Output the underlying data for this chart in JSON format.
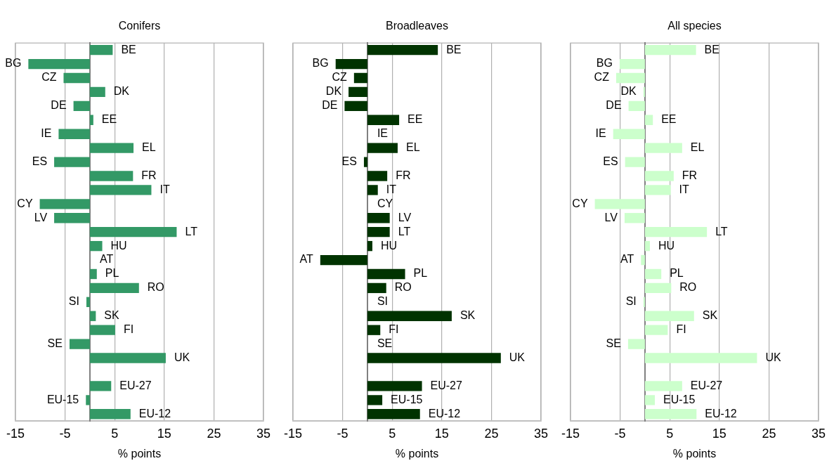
{
  "chart_data": [
    {
      "type": "bar",
      "orientation": "horizontal",
      "title": "Conifers",
      "xlabel": "% points",
      "categories": [
        "BE",
        "BG",
        "CZ",
        "DK",
        "DE",
        "EE",
        "IE",
        "EL",
        "ES",
        "FR",
        "IT",
        "CY",
        "LV",
        "LT",
        "HU",
        "AT",
        "PL",
        "RO",
        "SI",
        "SK",
        "FI",
        "SE",
        "UK",
        null,
        "EU-27",
        "EU-15",
        "EU-12"
      ],
      "values": [
        4.6,
        -12.4,
        -5.3,
        3.1,
        -3.3,
        0.7,
        -6.3,
        8.8,
        -7.2,
        8.7,
        12.4,
        -10.1,
        -7.2,
        17.5,
        2.5,
        0,
        1.4,
        9.9,
        -0.7,
        1.2,
        5.1,
        -4.1,
        15.3,
        null,
        4.3,
        -0.8,
        8.2
      ],
      "color": "#339966",
      "xlim": [
        -15,
        35
      ],
      "xticks": [
        -15,
        -5,
        5,
        15,
        25,
        35
      ],
      "grid": "x",
      "tick_labels": "x"
    },
    {
      "type": "bar",
      "orientation": "horizontal",
      "title": "Broadleaves",
      "xlabel": "% points",
      "categories": [
        "BE",
        "BG",
        "CZ",
        "DK",
        "DE",
        "EE",
        "IE",
        "EL",
        "ES",
        "FR",
        "IT",
        "CY",
        "LV",
        "LT",
        "HU",
        "AT",
        "PL",
        "RO",
        "SI",
        "SK",
        "FI",
        "SE",
        "UK",
        null,
        "EU-27",
        "EU-15",
        "EU-12"
      ],
      "values": [
        14.2,
        -6.4,
        -2.7,
        -3.8,
        -4.6,
        6.4,
        0,
        6.1,
        -0.7,
        4.0,
        2.1,
        0,
        4.5,
        4.5,
        1.0,
        -9.5,
        7.6,
        3.8,
        0,
        17.0,
        2.6,
        0,
        26.9,
        null,
        11.0,
        3.0,
        10.6
      ],
      "color": "#003300",
      "xlim": [
        -15,
        35
      ],
      "xticks": [
        -15,
        -5,
        5,
        15,
        25,
        35
      ],
      "grid": "x",
      "tick_labels": "x"
    },
    {
      "type": "bar",
      "orientation": "horizontal",
      "title": "All species",
      "xlabel": "% points",
      "categories": [
        "BE",
        "BG",
        "CZ",
        "DK",
        "DE",
        "EE",
        "IE",
        "EL",
        "ES",
        "FR",
        "IT",
        "CY",
        "LV",
        "LT",
        "HU",
        "AT",
        "PL",
        "RO",
        "SI",
        "SK",
        "FI",
        "SE",
        "UK",
        null,
        "EU-27",
        "EU-15",
        "EU-12"
      ],
      "values": [
        10.3,
        -5.1,
        -5.8,
        -0.3,
        -3.3,
        1.6,
        -6.4,
        7.5,
        -4.0,
        5.8,
        5.2,
        -10.1,
        -4.1,
        12.5,
        1.0,
        -0.8,
        3.3,
        5.3,
        -0.3,
        9.9,
        4.6,
        -3.4,
        22.6,
        null,
        7.5,
        2.0,
        10.4
      ],
      "color": "#ccffcc",
      "xlim": [
        -15,
        35
      ],
      "xticks": [
        -15,
        -5,
        5,
        15,
        25,
        35
      ],
      "grid": "x",
      "tick_labels": "x"
    }
  ]
}
